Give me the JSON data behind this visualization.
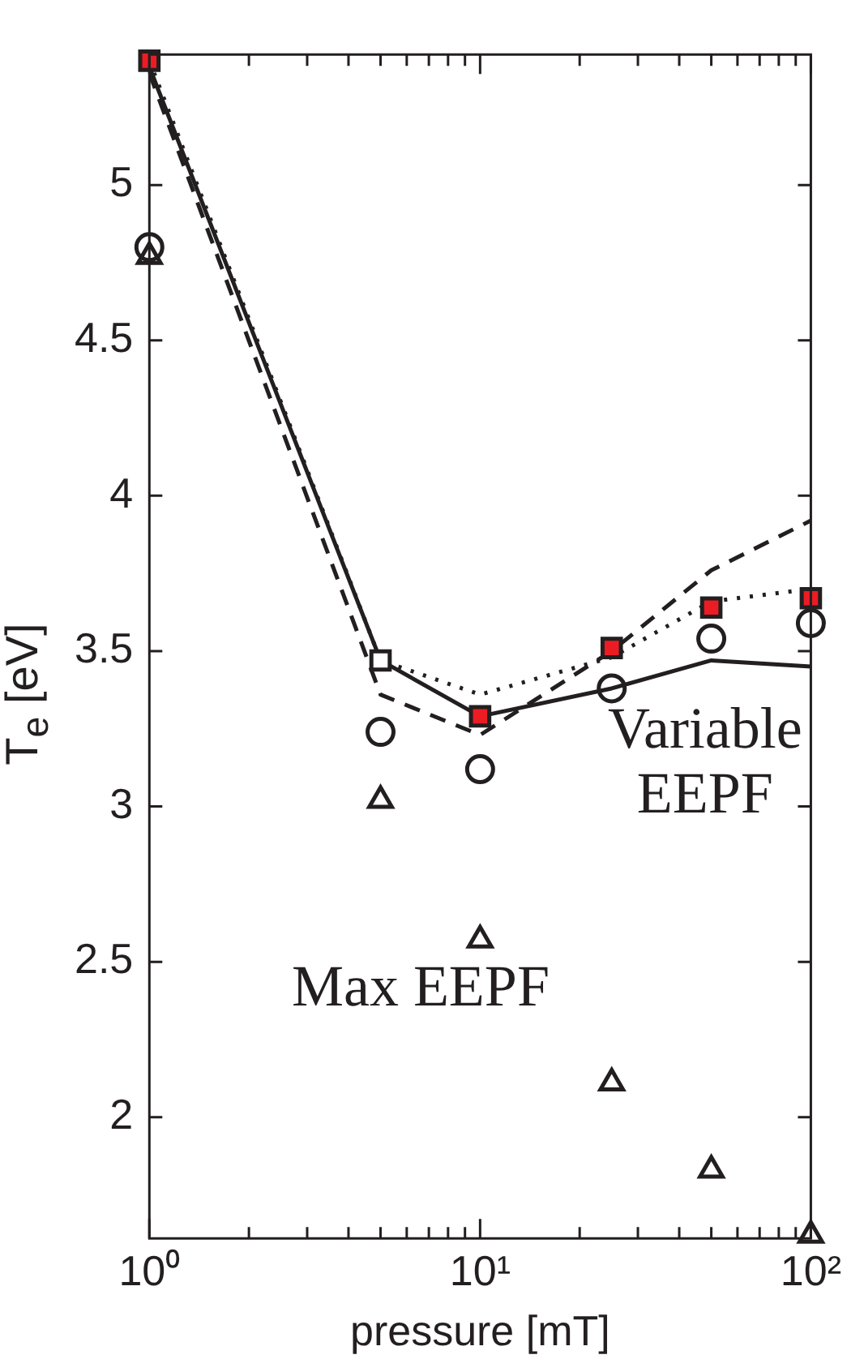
{
  "chart_data": {
    "type": "line",
    "xlabel": "pressure [mT]",
    "ylabel": "T$_{e}$ [eV]",
    "x": [
      1,
      5,
      10,
      25,
      50,
      100
    ],
    "log": "x",
    "xlim": [
      1,
      100
    ],
    "xticks": [
      {
        "value": 1,
        "label": "10⁰"
      },
      {
        "value": 2,
        "label": null
      },
      {
        "value": 3,
        "label": null
      },
      {
        "value": 4,
        "label": null
      },
      {
        "value": 5,
        "label": null
      },
      {
        "value": 6,
        "label": null
      },
      {
        "value": 7,
        "label": null
      },
      {
        "value": 8,
        "label": null
      },
      {
        "value": 9,
        "label": null
      },
      {
        "value": 10,
        "label": "10¹"
      },
      {
        "value": 20,
        "label": null
      },
      {
        "value": 30,
        "label": null
      },
      {
        "value": 40,
        "label": null
      },
      {
        "value": 50,
        "label": null
      },
      {
        "value": 60,
        "label": null
      },
      {
        "value": 70,
        "label": null
      },
      {
        "value": 80,
        "label": null
      },
      {
        "value": 90,
        "label": null
      },
      {
        "value": 100,
        "label": "10²"
      }
    ],
    "ylim": [
      1.61,
      5.42
    ],
    "yticks": [
      2,
      2.5,
      3,
      3.5,
      4,
      4.5,
      5
    ],
    "grid": false,
    "legend": false,
    "series": [
      {
        "type": "line",
        "line_style": "solid",
        "marker": "none",
        "color": "#231f20",
        "values": [
          5.38,
          3.47,
          3.29,
          3.38,
          3.47,
          3.45
        ]
      },
      {
        "type": "line",
        "line_style": "dashed",
        "marker": "none",
        "color": "#231f20",
        "values": [
          5.36,
          3.36,
          3.23,
          3.5,
          3.76,
          3.92
        ]
      },
      {
        "type": "line",
        "line_style": "dotted",
        "marker": "none",
        "color": "#231f20",
        "values": [
          5.4,
          3.47,
          3.36,
          3.48,
          3.66,
          3.7
        ]
      },
      {
        "type": "scatter",
        "marker": "square",
        "color": "#231f20",
        "colors": [
          "#ec1c24",
          "#ffffff",
          "#ec1c24",
          "#ec1c24",
          "#ec1c24",
          "#ec1c24"
        ],
        "values": [
          5.4,
          3.47,
          3.29,
          3.51,
          3.64,
          3.67
        ]
      },
      {
        "type": "scatter",
        "marker": "circle",
        "color": "#231f20",
        "values": [
          4.8,
          3.24,
          3.12,
          3.38,
          3.54,
          3.59
        ]
      },
      {
        "type": "scatter",
        "marker": "triangle",
        "color": "#231f20",
        "values": [
          4.77,
          3.02,
          2.57,
          2.11,
          1.83,
          1.62
        ]
      }
    ],
    "annotations": [
      "Variable EEPF",
      "Max EEPF"
    ]
  }
}
